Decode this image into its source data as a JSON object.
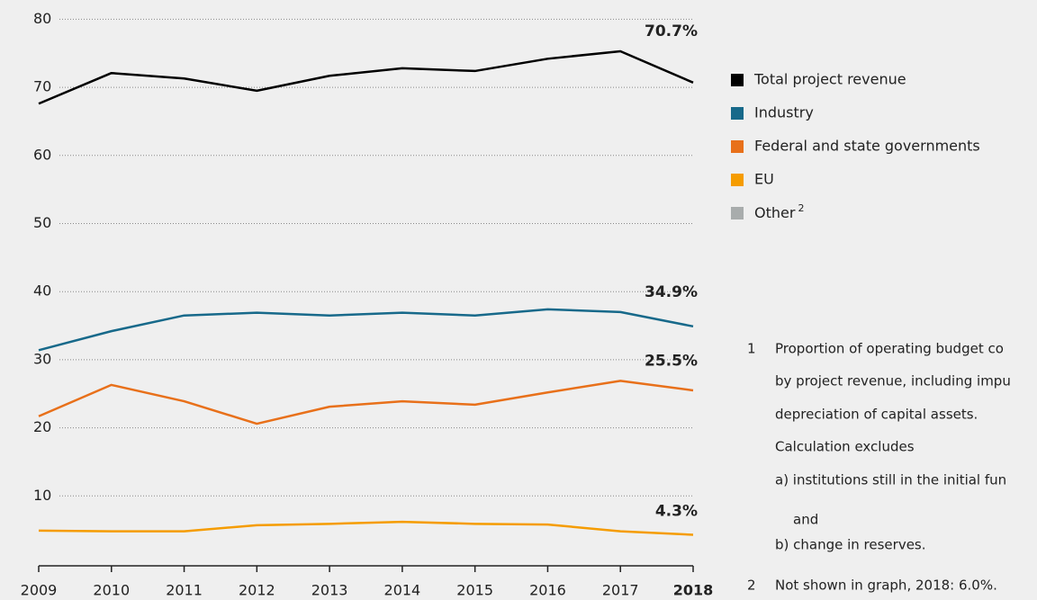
{
  "chart_data": {
    "type": "line",
    "x": [
      2009,
      2010,
      2011,
      2012,
      2013,
      2014,
      2015,
      2016,
      2017,
      2018
    ],
    "xlim": [
      2009,
      2018
    ],
    "xticks": [
      2009,
      2010,
      2011,
      2012,
      2013,
      2014,
      2015,
      2016,
      2017,
      2018
    ],
    "ylim": [
      0,
      80
    ],
    "yticks": [
      10,
      20,
      30,
      40,
      50,
      60,
      70,
      80
    ],
    "grid": true,
    "series": [
      {
        "name": "Total project revenue",
        "color": "#000000",
        "values": [
          67.6,
          72.1,
          71.3,
          69.5,
          71.7,
          72.8,
          72.4,
          74.2,
          75.3,
          70.7
        ],
        "value_labels": [
          null,
          null,
          null,
          null,
          null,
          null,
          null,
          null,
          null,
          "70.7%"
        ]
      },
      {
        "name": "Industry",
        "color": "#17698a",
        "values": [
          31.4,
          34.2,
          36.5,
          36.9,
          36.5,
          36.9,
          36.5,
          37.4,
          37.0,
          34.9
        ],
        "value_labels": [
          null,
          null,
          null,
          null,
          null,
          null,
          null,
          null,
          null,
          "34.9%"
        ]
      },
      {
        "name": "Federal and state governments",
        "color": "#e8701a",
        "values": [
          21.7,
          26.3,
          23.9,
          20.6,
          23.1,
          23.9,
          23.4,
          25.2,
          26.9,
          25.5
        ],
        "value_labels": [
          null,
          null,
          null,
          null,
          null,
          null,
          null,
          null,
          null,
          "25.5%"
        ]
      },
      {
        "name": "EU",
        "color": "#f59c00",
        "values": [
          4.9,
          4.8,
          4.8,
          5.7,
          5.9,
          6.2,
          5.9,
          5.8,
          4.8,
          4.3
        ],
        "value_labels": [
          null,
          null,
          null,
          null,
          null,
          null,
          null,
          null,
          null,
          "4.3%"
        ]
      }
    ],
    "legend_extra": {
      "name": "Other",
      "note": "2",
      "color": "#a8acac"
    },
    "footnotes": [
      {
        "number": "1",
        "lines": [
          "Proportion of operating budget co",
          "by project revenue, including impu",
          "depreciation of capital assets.",
          "Calculation excludes",
          "a) institutions still in the initial fun",
          "and",
          "b) change in reserves."
        ]
      },
      {
        "number": "2",
        "lines": [
          "Not shown in graph, 2018: 6.0%."
        ]
      }
    ]
  }
}
